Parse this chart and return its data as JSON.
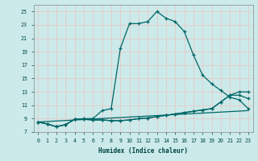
{
  "xlabel": "Humidex (Indice chaleur)",
  "bg_color": "#cceaea",
  "grid_color": "#e8c8c8",
  "line_color": "#006666",
  "xlim": [
    -0.5,
    23.5
  ],
  "ylim": [
    7,
    26
  ],
  "yticks": [
    7,
    9,
    11,
    13,
    15,
    17,
    19,
    21,
    23,
    25
  ],
  "xticks": [
    0,
    1,
    2,
    3,
    4,
    5,
    6,
    7,
    8,
    9,
    10,
    11,
    12,
    13,
    14,
    15,
    16,
    17,
    18,
    19,
    20,
    21,
    22,
    23
  ],
  "line1_x": [
    0,
    1,
    2,
    3,
    4,
    5,
    6,
    7,
    8,
    9,
    10,
    11,
    12,
    13,
    14,
    15,
    16,
    17,
    18,
    19,
    20,
    21,
    22,
    23
  ],
  "line1_y": [
    8.5,
    8.2,
    7.8,
    8.1,
    8.9,
    9.0,
    9.0,
    10.2,
    10.5,
    19.5,
    23.2,
    23.2,
    23.5,
    25.0,
    24.0,
    23.5,
    22.0,
    18.5,
    15.5,
    14.2,
    13.2,
    12.2,
    11.8,
    10.5
  ],
  "line2_x": [
    0,
    1,
    2,
    3,
    4,
    5,
    6,
    7,
    8,
    9,
    10,
    11,
    12,
    13,
    14,
    15,
    16,
    17,
    18,
    19,
    20,
    21,
    22,
    23
  ],
  "line2_y": [
    8.5,
    8.2,
    7.8,
    8.1,
    8.9,
    8.9,
    8.8,
    8.8,
    8.7,
    8.7,
    8.8,
    9.0,
    9.1,
    9.3,
    9.5,
    9.7,
    9.9,
    10.1,
    10.3,
    10.5,
    11.5,
    12.5,
    13.0,
    13.0
  ],
  "line3_x": [
    0,
    1,
    2,
    3,
    4,
    5,
    6,
    7,
    8,
    9,
    10,
    11,
    12,
    13,
    14,
    15,
    16,
    17,
    18,
    19,
    20,
    21,
    22,
    23
  ],
  "line3_y": [
    8.5,
    8.2,
    7.8,
    8.1,
    8.9,
    8.9,
    8.8,
    8.8,
    8.7,
    8.7,
    8.8,
    9.0,
    9.1,
    9.3,
    9.5,
    9.7,
    9.9,
    10.1,
    10.3,
    10.5,
    11.5,
    12.5,
    12.5,
    12.0
  ],
  "line4_x": [
    0,
    23
  ],
  "line4_y": [
    8.5,
    10.2
  ]
}
